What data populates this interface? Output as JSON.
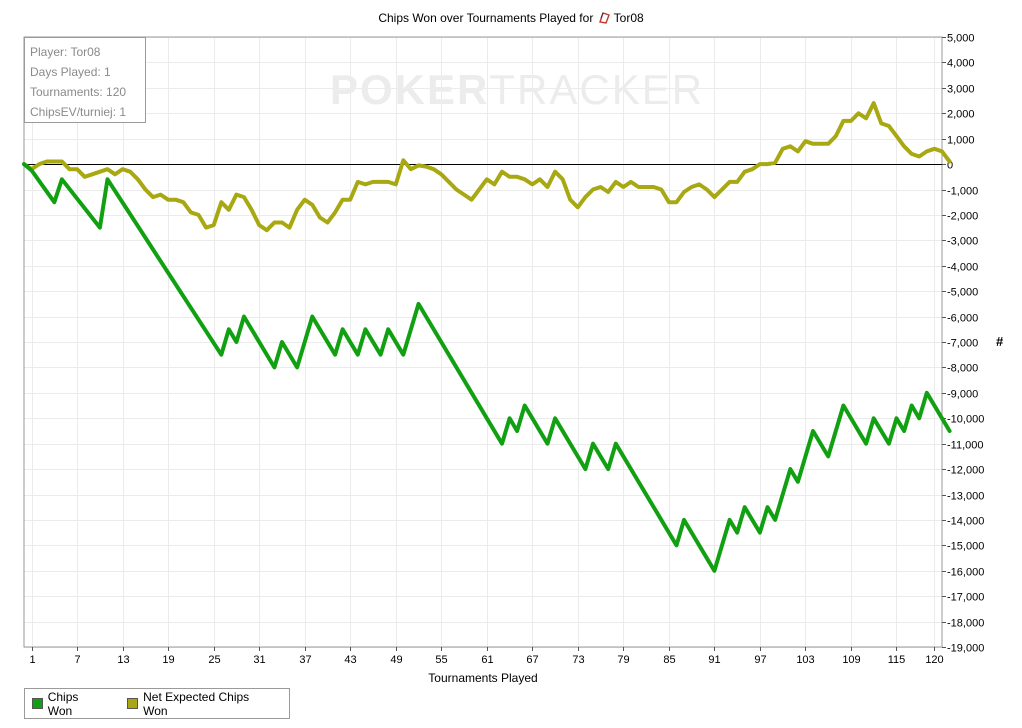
{
  "chart_data": {
    "type": "line",
    "title": "Chips Won over Tournaments Played for",
    "title_player": "Tor08",
    "xlabel": "Tournaments Played",
    "ylabel": "#",
    "xlim": [
      0,
      120
    ],
    "ylim": [
      -19000,
      5000
    ],
    "x_ticks": [
      1,
      7,
      13,
      19,
      25,
      31,
      37,
      43,
      49,
      55,
      61,
      67,
      73,
      79,
      85,
      91,
      97,
      103,
      109,
      115,
      120
    ],
    "y_ticks": [
      5000,
      4000,
      3000,
      2000,
      1000,
      0,
      -1000,
      -2000,
      -3000,
      -4000,
      -5000,
      -6000,
      -7000,
      -8000,
      -9000,
      -10000,
      -11000,
      -12000,
      -13000,
      -14000,
      -15000,
      -16000,
      -17000,
      -18000,
      -19000
    ],
    "y_tick_labels": [
      "5,000",
      "4,000",
      "3,000",
      "2,000",
      "1,000",
      "0",
      "-1,000",
      "-2,000",
      "-3,000",
      "-4,000",
      "-5,000",
      "-6,000",
      "-7,000",
      "-8,000",
      "-9,000",
      "-10,000",
      "-11,000",
      "-12,000",
      "-13,000",
      "-14,000",
      "-15,000",
      "-16,000",
      "-17,000",
      "-18,000",
      "-19,000"
    ],
    "grid": true,
    "legend_position": "bottom-left",
    "series": [
      {
        "name": "Chips Won",
        "color": "#11a011",
        "points": [
          [
            0,
            0
          ],
          [
            1,
            -250
          ],
          [
            4,
            -1500
          ],
          [
            5,
            -600
          ],
          [
            10,
            -2500
          ],
          [
            11,
            -600
          ],
          [
            26,
            -7500
          ],
          [
            27,
            -6500
          ],
          [
            28,
            -7000
          ],
          [
            29,
            -6000
          ],
          [
            33,
            -8000
          ],
          [
            34,
            -7000
          ],
          [
            36,
            -8000
          ],
          [
            38,
            -6000
          ],
          [
            41,
            -7500
          ],
          [
            42,
            -6500
          ],
          [
            44,
            -7500
          ],
          [
            45,
            -6500
          ],
          [
            47,
            -7500
          ],
          [
            48,
            -6500
          ],
          [
            50,
            -7500
          ],
          [
            52,
            -5500
          ],
          [
            63,
            -11000
          ],
          [
            64,
            -10000
          ],
          [
            65,
            -10500
          ],
          [
            66,
            -9500
          ],
          [
            69,
            -11000
          ],
          [
            70,
            -10000
          ],
          [
            74,
            -12000
          ],
          [
            75,
            -11000
          ],
          [
            77,
            -12000
          ],
          [
            78,
            -11000
          ],
          [
            86,
            -15000
          ],
          [
            87,
            -14000
          ],
          [
            91,
            -16000
          ],
          [
            93,
            -14000
          ],
          [
            94,
            -14500
          ],
          [
            95,
            -13500
          ],
          [
            97,
            -14500
          ],
          [
            98,
            -13500
          ],
          [
            99,
            -14000
          ],
          [
            101,
            -12000
          ],
          [
            102,
            -12500
          ],
          [
            104,
            -10500
          ],
          [
            106,
            -11500
          ],
          [
            108,
            -9500
          ],
          [
            111,
            -11000
          ],
          [
            112,
            -10000
          ],
          [
            114,
            -11000
          ],
          [
            115,
            -10000
          ],
          [
            116,
            -10500
          ],
          [
            117,
            -9500
          ],
          [
            118,
            -10000
          ],
          [
            119,
            -9000
          ],
          [
            122,
            -10500
          ]
        ]
      },
      {
        "name": "Net Expected Chips Won",
        "color": "#a8a812",
        "points": [
          [
            0,
            0
          ],
          [
            1,
            -200
          ],
          [
            2,
            0
          ],
          [
            3,
            100
          ],
          [
            4,
            100
          ],
          [
            5,
            100
          ],
          [
            6,
            -200
          ],
          [
            7,
            -200
          ],
          [
            8,
            -500
          ],
          [
            9,
            -400
          ],
          [
            10,
            -300
          ],
          [
            11,
            -200
          ],
          [
            12,
            -400
          ],
          [
            13,
            -200
          ],
          [
            14,
            -300
          ],
          [
            15,
            -600
          ],
          [
            16,
            -1000
          ],
          [
            17,
            -1300
          ],
          [
            18,
            -1200
          ],
          [
            19,
            -1400
          ],
          [
            20,
            -1400
          ],
          [
            21,
            -1500
          ],
          [
            22,
            -1900
          ],
          [
            23,
            -2000
          ],
          [
            24,
            -2500
          ],
          [
            25,
            -2400
          ],
          [
            26,
            -1500
          ],
          [
            27,
            -1800
          ],
          [
            28,
            -1200
          ],
          [
            29,
            -1300
          ],
          [
            30,
            -1800
          ],
          [
            31,
            -2400
          ],
          [
            32,
            -2600
          ],
          [
            33,
            -2300
          ],
          [
            34,
            -2300
          ],
          [
            35,
            -2500
          ],
          [
            36,
            -1800
          ],
          [
            37,
            -1400
          ],
          [
            38,
            -1600
          ],
          [
            39,
            -2100
          ],
          [
            40,
            -2300
          ],
          [
            41,
            -1900
          ],
          [
            42,
            -1400
          ],
          [
            43,
            -1400
          ],
          [
            44,
            -700
          ],
          [
            45,
            -800
          ],
          [
            46,
            -700
          ],
          [
            47,
            -700
          ],
          [
            48,
            -700
          ],
          [
            49,
            -800
          ],
          [
            50,
            150
          ],
          [
            51,
            -200
          ],
          [
            52,
            -50
          ],
          [
            53,
            -100
          ],
          [
            54,
            -200
          ],
          [
            55,
            -400
          ],
          [
            56,
            -700
          ],
          [
            57,
            -1000
          ],
          [
            58,
            -1200
          ],
          [
            59,
            -1400
          ],
          [
            60,
            -1000
          ],
          [
            61,
            -600
          ],
          [
            62,
            -800
          ],
          [
            63,
            -300
          ],
          [
            64,
            -500
          ],
          [
            65,
            -500
          ],
          [
            66,
            -600
          ],
          [
            67,
            -800
          ],
          [
            68,
            -600
          ],
          [
            69,
            -900
          ],
          [
            70,
            -300
          ],
          [
            71,
            -600
          ],
          [
            72,
            -1400
          ],
          [
            73,
            -1700
          ],
          [
            74,
            -1300
          ],
          [
            75,
            -1000
          ],
          [
            76,
            -900
          ],
          [
            77,
            -1100
          ],
          [
            78,
            -700
          ],
          [
            79,
            -900
          ],
          [
            80,
            -700
          ],
          [
            81,
            -900
          ],
          [
            82,
            -900
          ],
          [
            83,
            -900
          ],
          [
            84,
            -1000
          ],
          [
            85,
            -1500
          ],
          [
            86,
            -1500
          ],
          [
            87,
            -1100
          ],
          [
            88,
            -900
          ],
          [
            89,
            -800
          ],
          [
            90,
            -1000
          ],
          [
            91,
            -1300
          ],
          [
            92,
            -1000
          ],
          [
            93,
            -700
          ],
          [
            94,
            -700
          ],
          [
            95,
            -300
          ],
          [
            96,
            -200
          ],
          [
            97,
            0
          ],
          [
            98,
            0
          ],
          [
            99,
            50
          ],
          [
            100,
            600
          ],
          [
            101,
            700
          ],
          [
            102,
            500
          ],
          [
            103,
            900
          ],
          [
            104,
            800
          ],
          [
            105,
            800
          ],
          [
            106,
            800
          ],
          [
            107,
            1100
          ],
          [
            108,
            1700
          ],
          [
            109,
            1700
          ],
          [
            110,
            2000
          ],
          [
            111,
            1800
          ],
          [
            112,
            2400
          ],
          [
            113,
            1600
          ],
          [
            114,
            1500
          ],
          [
            115,
            1100
          ],
          [
            116,
            700
          ],
          [
            117,
            400
          ],
          [
            118,
            300
          ],
          [
            119,
            500
          ],
          [
            120,
            600
          ],
          [
            121,
            500
          ],
          [
            122,
            100
          ]
        ]
      }
    ]
  },
  "info_box": {
    "player": "Player: Tor08",
    "days_played": "Days Played: 1",
    "tournaments": "Tournaments: 120",
    "chipsev": "ChipsEV/turniej: 1"
  },
  "watermark": {
    "part1": "POKER",
    "part2": "TRACKER"
  },
  "legend": [
    {
      "label": "Chips Won",
      "color": "#11a011"
    },
    {
      "label": "Net Expected Chips Won",
      "color": "#a8a812"
    }
  ]
}
